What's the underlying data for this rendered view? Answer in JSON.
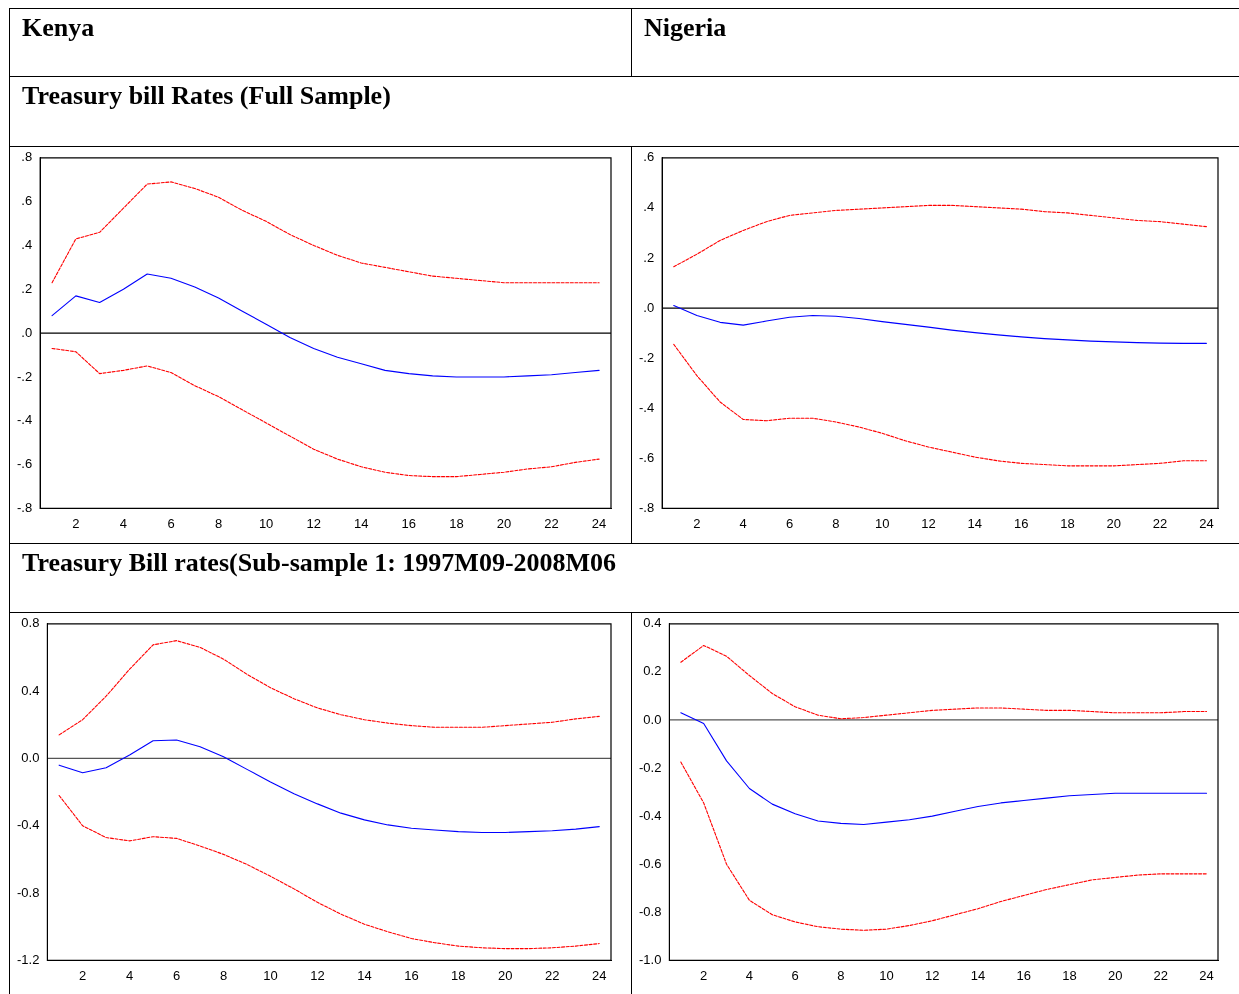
{
  "chart_data": [
    {
      "type": "line",
      "title": "Kenya",
      "subtitle": "Treasury bill Rates (Full Sample)",
      "marker": "none",
      "x": [
        1,
        2,
        3,
        4,
        5,
        6,
        7,
        8,
        9,
        10,
        11,
        12,
        13,
        14,
        15,
        16,
        17,
        18,
        19,
        20,
        21,
        22,
        23,
        24
      ],
      "xlim": [
        0.5,
        24.5
      ],
      "xticks": [
        2,
        4,
        6,
        8,
        10,
        12,
        14,
        16,
        18,
        20,
        22,
        24
      ],
      "ylim": [
        -0.8,
        0.8
      ],
      "yticks": [
        {
          "value": -0.8,
          "label": "-.8"
        },
        {
          "value": -0.6,
          "label": "-.6"
        },
        {
          "value": -0.4,
          "label": "-.4"
        },
        {
          "value": -0.2,
          "label": "-.2"
        },
        {
          "value": 0,
          "label": ".0"
        },
        {
          "value": 0.2,
          "label": ".2"
        },
        {
          "value": 0.4,
          "label": ".4"
        },
        {
          "value": 0.6,
          "label": ".6"
        },
        {
          "value": 0.8,
          "label": ".8"
        }
      ],
      "ref_lines": [
        {
          "axis": "y",
          "value": 0,
          "color": "#000000"
        }
      ],
      "series": [
        {
          "type": "line",
          "color": "#0000ff",
          "line_style": "solid",
          "values": [
            0.08,
            0.17,
            0.14,
            0.2,
            0.27,
            0.25,
            0.21,
            0.16,
            0.1,
            0.04,
            -0.02,
            -0.07,
            -0.11,
            -0.14,
            -0.17,
            -0.185,
            -0.195,
            -0.2,
            -0.2,
            -0.2,
            -0.195,
            -0.19,
            -0.18,
            -0.17
          ]
        },
        {
          "type": "line",
          "color": "#ff0000",
          "line_style": "dashed",
          "values": [
            0.23,
            0.43,
            0.46,
            0.57,
            0.68,
            0.69,
            0.66,
            0.62,
            0.56,
            0.51,
            0.45,
            0.4,
            0.355,
            0.32,
            0.3,
            0.28,
            0.26,
            0.25,
            0.24,
            0.23,
            0.23,
            0.23,
            0.23,
            0.23
          ]
        },
        {
          "type": "line",
          "color": "#ff0000",
          "line_style": "dashed",
          "values": [
            -0.07,
            -0.085,
            -0.185,
            -0.17,
            -0.15,
            -0.18,
            -0.24,
            -0.29,
            -0.35,
            -0.41,
            -0.47,
            -0.53,
            -0.575,
            -0.61,
            -0.635,
            -0.65,
            -0.655,
            -0.655,
            -0.645,
            -0.635,
            -0.62,
            -0.61,
            -0.59,
            -0.575
          ]
        }
      ]
    },
    {
      "type": "line",
      "title": "Nigeria",
      "marker": "none",
      "x": [
        1,
        2,
        3,
        4,
        5,
        6,
        7,
        8,
        9,
        10,
        11,
        12,
        13,
        14,
        15,
        16,
        17,
        18,
        19,
        20,
        21,
        22,
        23,
        24
      ],
      "xlim": [
        0.5,
        24.5
      ],
      "xticks": [
        2,
        4,
        6,
        8,
        10,
        12,
        14,
        16,
        18,
        20,
        22,
        24
      ],
      "ylim": [
        -0.8,
        0.6
      ],
      "yticks": [
        {
          "value": -0.8,
          "label": "-.8"
        },
        {
          "value": -0.6,
          "label": "-.6"
        },
        {
          "value": -0.4,
          "label": "-.4"
        },
        {
          "value": -0.2,
          "label": "-.2"
        },
        {
          "value": 0,
          "label": ".0"
        },
        {
          "value": 0.2,
          "label": ".2"
        },
        {
          "value": 0.4,
          "label": ".4"
        },
        {
          "value": 0.6,
          "label": ".6"
        }
      ],
      "ref_lines": [
        {
          "axis": "y",
          "value": 0,
          "color": "#000000"
        }
      ],
      "series": [
        {
          "type": "line",
          "color": "#0000ff",
          "line_style": "solid",
          "values": [
            0.01,
            -0.03,
            -0.057,
            -0.068,
            -0.052,
            -0.037,
            -0.03,
            -0.033,
            -0.042,
            -0.054,
            -0.065,
            -0.076,
            -0.088,
            -0.098,
            -0.107,
            -0.115,
            -0.122,
            -0.127,
            -0.132,
            -0.135,
            -0.138,
            -0.14,
            -0.141,
            -0.141
          ]
        },
        {
          "type": "line",
          "color": "#ff0000",
          "line_style": "dashed",
          "values": [
            0.165,
            0.215,
            0.27,
            0.31,
            0.345,
            0.37,
            0.38,
            0.39,
            0.395,
            0.4,
            0.405,
            0.41,
            0.41,
            0.405,
            0.4,
            0.395,
            0.385,
            0.38,
            0.37,
            0.36,
            0.35,
            0.345,
            0.335,
            0.325
          ]
        },
        {
          "type": "line",
          "color": "#ff0000",
          "line_style": "dashed",
          "values": [
            -0.145,
            -0.27,
            -0.375,
            -0.445,
            -0.45,
            -0.44,
            -0.44,
            -0.455,
            -0.475,
            -0.5,
            -0.53,
            -0.555,
            -0.575,
            -0.595,
            -0.61,
            -0.62,
            -0.625,
            -0.63,
            -0.63,
            -0.63,
            -0.625,
            -0.62,
            -0.61,
            -0.61
          ]
        }
      ]
    },
    {
      "type": "line",
      "subtitle": "Treasury Bill rates(Sub-sample 1: 1997M09-2008M06",
      "marker": "none",
      "x": [
        1,
        2,
        3,
        4,
        5,
        6,
        7,
        8,
        9,
        10,
        11,
        12,
        13,
        14,
        15,
        16,
        17,
        18,
        19,
        20,
        21,
        22,
        23,
        24
      ],
      "xlim": [
        0.5,
        24.5
      ],
      "xticks": [
        2,
        4,
        6,
        8,
        10,
        12,
        14,
        16,
        18,
        20,
        22,
        24
      ],
      "ylim": [
        -1.2,
        0.8
      ],
      "yticks": [
        -1.2,
        -0.8,
        -0.4,
        {
          "value": 0,
          "label": "0.0"
        },
        0.4,
        0.8
      ],
      "ref_lines": [
        {
          "axis": "y",
          "value": 0,
          "color": "#555555"
        }
      ],
      "series": [
        {
          "type": "line",
          "color": "#0000ff",
          "line_style": "solid",
          "values": [
            -0.04,
            -0.085,
            -0.055,
            0.02,
            0.105,
            0.11,
            0.07,
            0.01,
            -0.065,
            -0.14,
            -0.21,
            -0.27,
            -0.325,
            -0.365,
            -0.395,
            -0.415,
            -0.425,
            -0.435,
            -0.44,
            -0.44,
            -0.435,
            -0.43,
            -0.42,
            -0.405
          ]
        },
        {
          "type": "line",
          "color": "#ff0000",
          "line_style": "dashed",
          "values": [
            0.14,
            0.23,
            0.37,
            0.53,
            0.675,
            0.7,
            0.66,
            0.59,
            0.5,
            0.42,
            0.355,
            0.3,
            0.26,
            0.23,
            0.21,
            0.195,
            0.185,
            0.185,
            0.185,
            0.195,
            0.205,
            0.215,
            0.235,
            0.25
          ]
        },
        {
          "type": "line",
          "color": "#ff0000",
          "line_style": "dashed",
          "values": [
            -0.22,
            -0.4,
            -0.47,
            -0.49,
            -0.465,
            -0.475,
            -0.52,
            -0.57,
            -0.63,
            -0.7,
            -0.775,
            -0.855,
            -0.925,
            -0.985,
            -1.03,
            -1.07,
            -1.095,
            -1.115,
            -1.125,
            -1.13,
            -1.13,
            -1.125,
            -1.115,
            -1.1
          ]
        }
      ]
    },
    {
      "type": "line",
      "marker": "none",
      "x": [
        1,
        2,
        3,
        4,
        5,
        6,
        7,
        8,
        9,
        10,
        11,
        12,
        13,
        14,
        15,
        16,
        17,
        18,
        19,
        20,
        21,
        22,
        23,
        24
      ],
      "xlim": [
        0.5,
        24.5
      ],
      "xticks": [
        2,
        4,
        6,
        8,
        10,
        12,
        14,
        16,
        18,
        20,
        22,
        24
      ],
      "ylim": [
        -1.0,
        0.4
      ],
      "yticks": [
        {
          "value": -1,
          "label": "-1.0"
        },
        -0.8,
        -0.6,
        -0.4,
        -0.2,
        {
          "value": 0,
          "label": "0.0"
        },
        0.2,
        0.4
      ],
      "ref_lines": [
        {
          "axis": "y",
          "value": 0,
          "color": "#555555"
        }
      ],
      "series": [
        {
          "type": "line",
          "color": "#0000ff",
          "line_style": "solid",
          "values": [
            0.03,
            -0.015,
            -0.17,
            -0.285,
            -0.35,
            -0.39,
            -0.42,
            -0.43,
            -0.435,
            -0.425,
            -0.415,
            -0.4,
            -0.38,
            -0.36,
            -0.345,
            -0.335,
            -0.325,
            -0.315,
            -0.31,
            -0.305,
            -0.305,
            -0.305,
            -0.305,
            -0.305
          ]
        },
        {
          "type": "line",
          "color": "#ff0000",
          "line_style": "dashed",
          "values": [
            0.24,
            0.31,
            0.265,
            0.185,
            0.11,
            0.055,
            0.02,
            0.005,
            0.01,
            0.02,
            0.03,
            0.04,
            0.045,
            0.05,
            0.05,
            0.045,
            0.04,
            0.04,
            0.035,
            0.03,
            0.03,
            0.03,
            0.035,
            0.035
          ]
        },
        {
          "type": "line",
          "color": "#ff0000",
          "line_style": "dashed",
          "values": [
            -0.175,
            -0.345,
            -0.6,
            -0.75,
            -0.81,
            -0.84,
            -0.86,
            -0.87,
            -0.875,
            -0.87,
            -0.855,
            -0.835,
            -0.81,
            -0.785,
            -0.755,
            -0.73,
            -0.705,
            -0.685,
            -0.665,
            -0.655,
            -0.645,
            -0.64,
            -0.64,
            -0.64
          ]
        }
      ]
    }
  ]
}
